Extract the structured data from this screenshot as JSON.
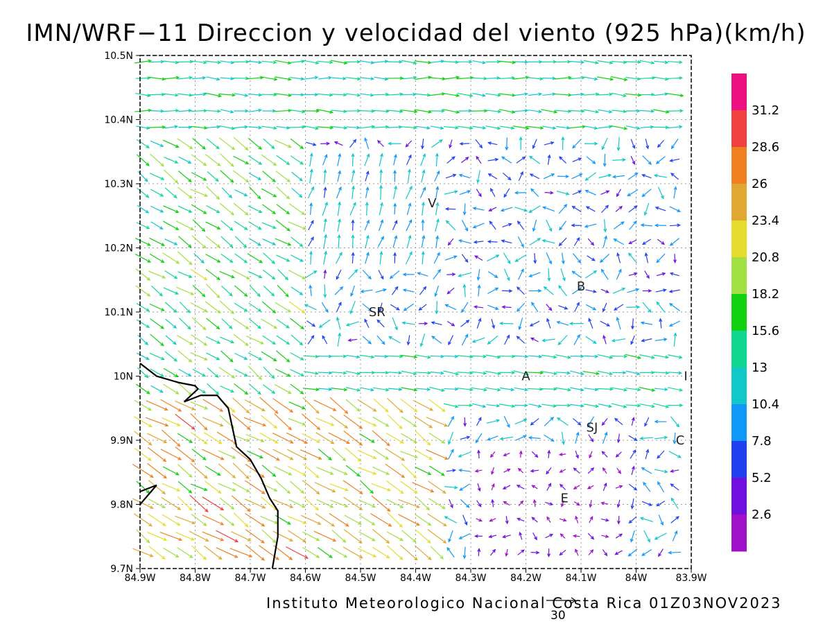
{
  "title": "IMN/WRF−11 Direccion y velocidad del viento (925 hPa)(km/h)",
  "credit": "Instituto Meteorologico Nacional Costa Rica 01Z03NOV2023",
  "reference_vector": {
    "label": "30"
  },
  "map": {
    "lon_range": [
      -84.9,
      -83.9
    ],
    "lat_range": [
      9.7,
      10.5
    ],
    "lon_ticks": [
      {
        "value": -84.9,
        "label": "84.9W"
      },
      {
        "value": -84.8,
        "label": "84.8W"
      },
      {
        "value": -84.7,
        "label": "84.7W"
      },
      {
        "value": -84.6,
        "label": "84.6W"
      },
      {
        "value": -84.5,
        "label": "84.5W"
      },
      {
        "value": -84.4,
        "label": "84.4W"
      },
      {
        "value": -84.3,
        "label": "84.3W"
      },
      {
        "value": -84.2,
        "label": "84.2W"
      },
      {
        "value": -84.1,
        "label": "84.1W"
      },
      {
        "value": -84.0,
        "label": "84W"
      },
      {
        "value": -83.9,
        "label": "83.9W"
      }
    ],
    "lat_ticks": [
      {
        "value": 9.7,
        "label": "9.7N"
      },
      {
        "value": 9.8,
        "label": "9.8N"
      },
      {
        "value": 9.9,
        "label": "9.9N"
      },
      {
        "value": 10.0,
        "label": "10N"
      },
      {
        "value": 10.1,
        "label": "10.1N"
      },
      {
        "value": 10.2,
        "label": "10.2N"
      },
      {
        "value": 10.3,
        "label": "10.3N"
      },
      {
        "value": 10.4,
        "label": "10.4N"
      },
      {
        "value": 10.5,
        "label": "10.5N"
      }
    ],
    "cities": [
      {
        "label": "V",
        "lon": -84.37,
        "lat": 10.27
      },
      {
        "label": "B",
        "lon": -84.1,
        "lat": 10.14
      },
      {
        "label": "SR",
        "lon": -84.47,
        "lat": 10.1
      },
      {
        "label": "A",
        "lon": -84.2,
        "lat": 10.0
      },
      {
        "label": "SJ",
        "lon": -84.08,
        "lat": 9.92
      },
      {
        "label": "C",
        "lon": -83.92,
        "lat": 9.9
      },
      {
        "label": "E",
        "lon": -84.13,
        "lat": 9.81
      },
      {
        "label": "I",
        "lon": -83.91,
        "lat": 10.0
      }
    ],
    "coastline": [
      [
        -84.9,
        10.02
      ],
      [
        -84.87,
        10.0
      ],
      [
        -84.83,
        9.99
      ],
      [
        -84.8,
        9.985
      ],
      [
        -84.795,
        9.98
      ],
      [
        -84.82,
        9.96
      ],
      [
        -84.79,
        9.97
      ],
      [
        -84.76,
        9.97
      ],
      [
        -84.74,
        9.95
      ],
      [
        -84.73,
        9.91
      ],
      [
        -84.725,
        9.89
      ],
      [
        -84.7,
        9.87
      ],
      [
        -84.68,
        9.84
      ],
      [
        -84.665,
        9.81
      ],
      [
        -84.65,
        9.79
      ],
      [
        -84.65,
        9.75
      ],
      [
        -84.66,
        9.7
      ]
    ],
    "coastline_islet": [
      [
        -84.9,
        9.8
      ],
      [
        -84.87,
        9.83
      ],
      [
        -84.9,
        9.82
      ]
    ]
  },
  "colorbar": {
    "labels": [
      "31.2",
      "28.6",
      "26",
      "23.4",
      "20.8",
      "18.2",
      "15.6",
      "13",
      "10.4",
      "7.8",
      "5.2",
      "2.6"
    ],
    "colors": [
      "#ee1080",
      "#f04040",
      "#ef8020",
      "#e0a830",
      "#e5dc2e",
      "#a0e040",
      "#10d010",
      "#10d890",
      "#10c8c8",
      "#1098f8",
      "#2040f0",
      "#7010e0",
      "#a010c8"
    ]
  },
  "wind": {
    "description": "Wind arrow field at 925 hPa, km/h",
    "regions_note": "westerly/northwesterly flow over the Pacific side, weak winds over the Central Valley"
  }
}
